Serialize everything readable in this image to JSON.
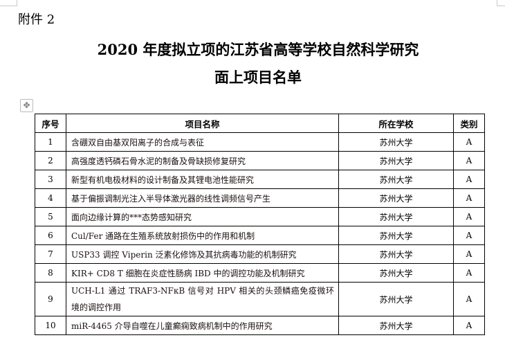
{
  "annex_label": "附件 2",
  "title_line1": "2020 年度拟立项的江苏省高等学校自然科学研究",
  "title_line2": "面上项目名单",
  "table": {
    "headers": [
      "序号",
      "项目名称",
      "所在学校",
      "类别"
    ],
    "rows": [
      {
        "no": "1",
        "name": "含硼双自由基双阳离子的合成与表征",
        "school": "苏州大学",
        "category": "A"
      },
      {
        "no": "2",
        "name": "高强度透钙磷石骨水泥的制备及骨缺损修复研究",
        "school": "苏州大学",
        "category": "A"
      },
      {
        "no": "3",
        "name": "新型有机电极材料的设计制备及其锂电池性能研究",
        "school": "苏州大学",
        "category": "A"
      },
      {
        "no": "4",
        "name": "基于偏振调制光注入半导体激光器的线性调频信号产生",
        "school": "苏州大学",
        "category": "A"
      },
      {
        "no": "5",
        "name": "面向边缘计算的***态势感知研究",
        "school": "苏州大学",
        "category": "A"
      },
      {
        "no": "6",
        "name": "Cul/Fer 通路在生殖系统放射损伤中的作用和机制",
        "school": "苏州大学",
        "category": "A"
      },
      {
        "no": "7",
        "name": "USP33 调控 Viperin 泛素化修饰及其抗病毒功能的机制研究",
        "school": "苏州大学",
        "category": "A"
      },
      {
        "no": "8",
        "name": "KIR+ CD8 T 细胞在炎症性肠病 IBD 中的调控功能及机制研究",
        "school": "苏州大学",
        "category": "A"
      },
      {
        "no": "9",
        "name": "UCH-L1 通过 TRAF3-NFκB 信号对 HPV 相关的头颈鳞癌免疫微环境的调控作用",
        "school": "苏州大学",
        "category": "A"
      },
      {
        "no": "10",
        "name": "miR-4465 介导自噬在儿童癫痫致病机制中的作用研究",
        "school": "苏州大学",
        "category": "A"
      }
    ]
  }
}
